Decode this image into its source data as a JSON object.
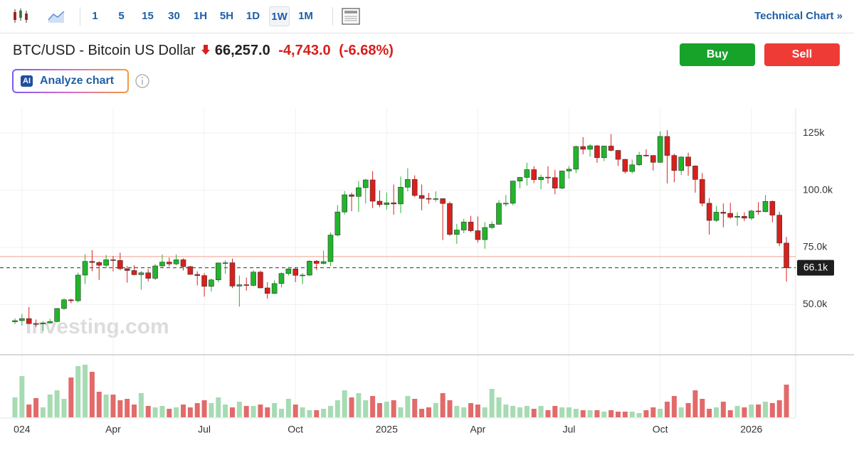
{
  "toolbar": {
    "intervals": [
      "1",
      "5",
      "15",
      "30",
      "1H",
      "5H",
      "1D",
      "1W",
      "1M"
    ],
    "selected": "1W",
    "link": "Technical Chart »"
  },
  "header": {
    "symbol": "BTC/USD - Bitcoin US Dollar",
    "price": "66,257.0",
    "change": "-4,743.0",
    "change_percent": "(-6.68%)",
    "buy": "Buy",
    "sell": "Sell",
    "ai_badge": "AI",
    "analyze": "Analyze chart"
  },
  "chart_data": {
    "type": "candlestick",
    "watermark": "Investing.com",
    "categories": [
      null,
      "024",
      null,
      null,
      null,
      null,
      null,
      null,
      null,
      null,
      null,
      null,
      null,
      null,
      "Apr",
      null,
      null,
      null,
      null,
      null,
      null,
      null,
      null,
      null,
      null,
      null,
      null,
      "Jul",
      null,
      null,
      null,
      null,
      null,
      null,
      null,
      null,
      null,
      null,
      null,
      null,
      "Oct",
      null,
      null,
      null,
      null,
      null,
      null,
      null,
      null,
      null,
      null,
      null,
      null,
      "2025",
      null,
      null,
      null,
      null,
      null,
      null,
      null,
      null,
      null,
      null,
      null,
      null,
      "Apr",
      null,
      null,
      null,
      null,
      null,
      null,
      null,
      null,
      null,
      null,
      null,
      null,
      "Jul",
      null,
      null,
      null,
      null,
      null,
      null,
      null,
      null,
      null,
      null,
      null,
      null,
      "Oct",
      null,
      null,
      null,
      null,
      null,
      null,
      null,
      null,
      null,
      null,
      null,
      null,
      "2026",
      null,
      null,
      null,
      null,
      null
    ],
    "open": [
      42500,
      43000,
      43900,
      41700,
      41600,
      42000,
      42600,
      48300,
      52100,
      51700,
      62900,
      68900,
      68400,
      67200,
      69600,
      69300,
      65700,
      64900,
      63100,
      63900,
      61500,
      66900,
      68600,
      67800,
      69600,
      66600,
      63200,
      62700,
      58000,
      60800,
      68200,
      68300,
      58100,
      58700,
      58400,
      64200,
      57300,
      54900,
      59200,
      63600,
      65600,
      62800,
      62900,
      69000,
      68000,
      68800,
      80400,
      90500,
      98000,
      97300,
      101100,
      104500,
      95200,
      93700,
      94500,
      94000,
      101300,
      104700,
      97700,
      96400,
      96100,
      96300,
      94200,
      80700,
      82600,
      86100,
      82300,
      78400,
      83700,
      85100,
      94300,
      94300,
      104000,
      105600,
      109000,
      104600,
      105700,
      105500,
      100900,
      108400,
      109200,
      119100,
      117900,
      119400,
      114200,
      119300,
      117400,
      113500,
      108200,
      111100,
      115300,
      115200,
      112200,
      123500,
      115200,
      108600,
      114500,
      110600,
      104700,
      94300,
      86800,
      90400,
      89900,
      88200,
      88600,
      87800,
      90900,
      90600,
      95100,
      89100,
      76900
    ],
    "high": [
      44000,
      45900,
      48900,
      43500,
      42800,
      43800,
      48500,
      52800,
      52500,
      64000,
      72000,
      73800,
      69000,
      71700,
      71300,
      72700,
      66900,
      67200,
      64700,
      65500,
      67700,
      71900,
      70600,
      71900,
      70200,
      66900,
      64600,
      63800,
      61400,
      68400,
      69400,
      70100,
      62700,
      61800,
      65000,
      64900,
      59800,
      60600,
      64100,
      66500,
      66000,
      63800,
      69400,
      69500,
      73600,
      81500,
      93500,
      99600,
      98900,
      104000,
      105000,
      108300,
      99900,
      99000,
      102500,
      106000,
      109600,
      106500,
      102500,
      98800,
      99500,
      96500,
      95000,
      85300,
      87500,
      88800,
      88500,
      86100,
      86400,
      95700,
      97900,
      104100,
      105800,
      112000,
      110500,
      106800,
      110500,
      108900,
      108500,
      110600,
      119500,
      123200,
      120200,
      119800,
      119300,
      124500,
      117600,
      113700,
      113400,
      116800,
      117900,
      115200,
      125700,
      126200,
      115900,
      114800,
      116400,
      110800,
      107500,
      96600,
      93100,
      94200,
      94500,
      90300,
      90400,
      91500,
      94800,
      97900,
      95500,
      90600,
      79600
    ],
    "low": [
      41500,
      40800,
      41500,
      40200,
      38500,
      41800,
      42300,
      47700,
      50600,
      50900,
      59000,
      64600,
      60800,
      66000,
      64500,
      65000,
      59600,
      62800,
      56500,
      60200,
      60700,
      66400,
      66700,
      67200,
      64900,
      63000,
      58400,
      53500,
      55700,
      59800,
      63400,
      57200,
      49100,
      56100,
      58000,
      57200,
      52600,
      54600,
      57500,
      62700,
      59800,
      58900,
      62500,
      65100,
      67500,
      66800,
      79800,
      89400,
      90800,
      90500,
      94200,
      92200,
      92600,
      91500,
      89300,
      90000,
      99500,
      97000,
      91200,
      94100,
      94900,
      78200,
      80000,
      76600,
      81200,
      81600,
      77100,
      74400,
      83000,
      85100,
      92900,
      93400,
      100800,
      102000,
      103100,
      100400,
      102900,
      98200,
      100400,
      105100,
      107500,
      115700,
      114700,
      112000,
      112700,
      117000,
      110600,
      107300,
      107300,
      110600,
      114700,
      108600,
      111900,
      103000,
      103500,
      106700,
      106300,
      98900,
      93000,
      80600,
      86100,
      83800,
      87500,
      84400,
      86500,
      86900,
      89300,
      90400,
      86000,
      75500,
      60100
    ],
    "close": [
      43000,
      43900,
      41700,
      41600,
      42000,
      42600,
      48300,
      52100,
      51700,
      62900,
      68900,
      68400,
      67200,
      69600,
      69300,
      65700,
      64900,
      63100,
      63900,
      61500,
      66900,
      68600,
      67800,
      69600,
      66600,
      63200,
      62700,
      58000,
      60800,
      68200,
      68300,
      58100,
      58700,
      58400,
      64200,
      57300,
      54900,
      59200,
      63600,
      65600,
      62800,
      62900,
      69000,
      68000,
      68800,
      80400,
      90500,
      98000,
      97300,
      101100,
      104500,
      95200,
      93700,
      94500,
      94000,
      101300,
      104700,
      97700,
      96400,
      96100,
      96300,
      94200,
      80700,
      82600,
      86100,
      82300,
      78400,
      83700,
      85100,
      94300,
      94300,
      104000,
      105600,
      109000,
      104600,
      105700,
      105500,
      100900,
      108400,
      109200,
      119100,
      117900,
      119400,
      114200,
      119300,
      117400,
      113500,
      108200,
      111100,
      115300,
      115200,
      112200,
      123500,
      115200,
      108600,
      114500,
      110600,
      104700,
      94300,
      86800,
      90400,
      89900,
      88200,
      88600,
      87800,
      90900,
      90600,
      95100,
      89100,
      76900,
      66100
    ],
    "volume": [
      28,
      58,
      18,
      27,
      14,
      32,
      38,
      26,
      56,
      72,
      74,
      64,
      36,
      32,
      32,
      24,
      26,
      18,
      34,
      16,
      14,
      16,
      12,
      14,
      18,
      14,
      20,
      24,
      20,
      28,
      18,
      14,
      22,
      16,
      16,
      18,
      14,
      20,
      12,
      26,
      18,
      14,
      10,
      10,
      12,
      16,
      24,
      38,
      28,
      34,
      24,
      30,
      20,
      22,
      24,
      14,
      30,
      26,
      12,
      14,
      20,
      34,
      24,
      16,
      14,
      20,
      18,
      14,
      40,
      28,
      18,
      16,
      14,
      16,
      12,
      16,
      10,
      16,
      14,
      14,
      12,
      10,
      10,
      10,
      8,
      10,
      8,
      8,
      8,
      6,
      10,
      14,
      12,
      22,
      30,
      14,
      20,
      38,
      26,
      12,
      14,
      22,
      10,
      16,
      14,
      18,
      18,
      22,
      20,
      24,
      46
    ],
    "vlim": [
      0,
      80
    ],
    "ylim": [
      28400,
      135900
    ],
    "yticks": [
      {
        "value": 50000,
        "label": "50.0k"
      },
      {
        "value": 75000,
        "label": "75.0k"
      },
      {
        "value": 100000,
        "label": "100.0k"
      },
      {
        "value": 125000,
        "label": "125k"
      }
    ],
    "prev_close": 71000,
    "last_price": {
      "value": 66100,
      "label": "66.1k"
    },
    "grid": true,
    "up_color": "#22b52b",
    "down_color": "#d8201c",
    "volume_up_color": "#a6dbb3",
    "volume_down_color": "#e26a6a",
    "prev_close_color": "#f3b3a6"
  }
}
